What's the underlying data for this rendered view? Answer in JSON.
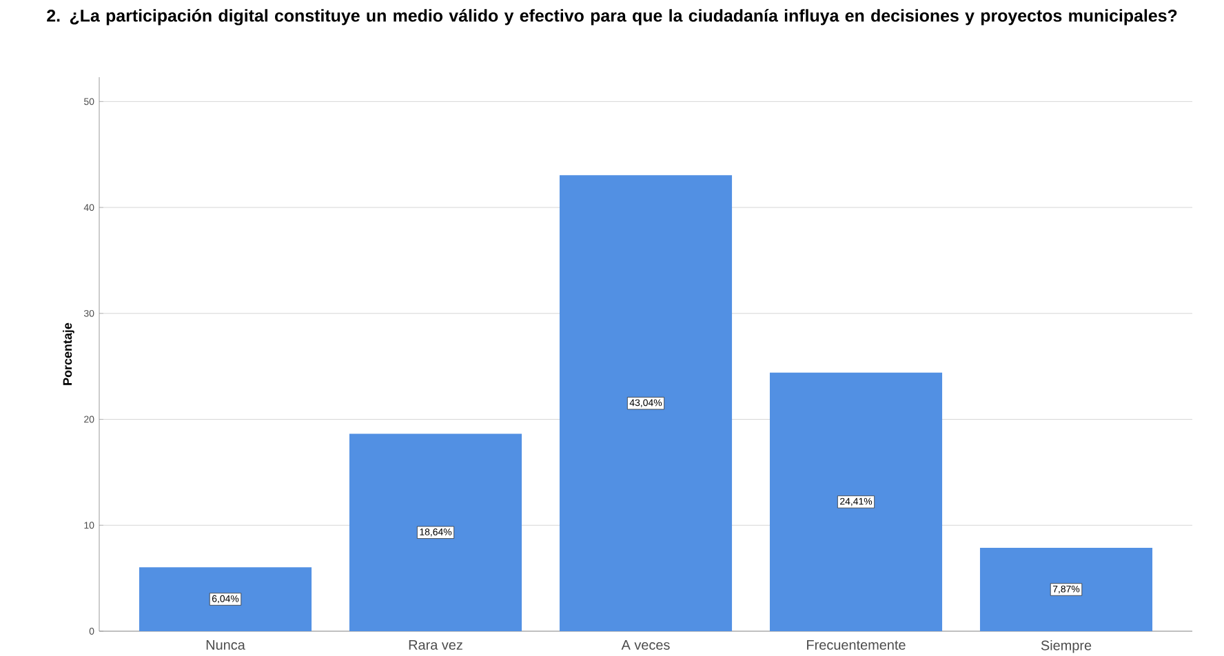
{
  "chart_data": {
    "type": "bar",
    "title": "2. ¿La participación digital constituye un medio válido y efectivo para que la ciudadanía influya en decisiones y proyectos municipales?",
    "ylabel": "Porcentaje",
    "categories": [
      "Nunca",
      "Rara vez",
      "A veces",
      "Frecuentemente",
      "Siempre"
    ],
    "values": [
      6.04,
      18.64,
      43.04,
      24.41,
      7.87
    ],
    "value_labels": [
      "6,04%",
      "18,64%",
      "43,04%",
      "24,41%",
      "7,87%"
    ],
    "color": "#5290e3",
    "ylim": [
      0,
      52.3
    ],
    "yticks": [
      0,
      10,
      20,
      30,
      40,
      50
    ],
    "grid": "y"
  }
}
